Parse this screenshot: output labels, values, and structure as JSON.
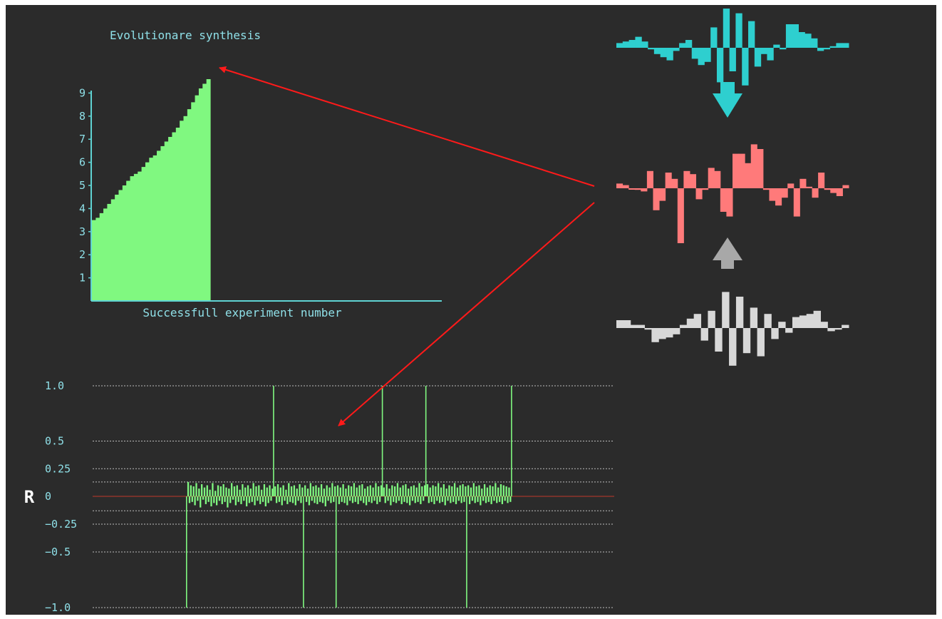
{
  "colors": {
    "background": "#2b2b2b",
    "axis": "#5fd3d3",
    "label": "#8fe0e8",
    "fitness_fill": "#80f880",
    "correlation_line": "#80f880",
    "grid": "#bdbdbd",
    "zero_line": "#c0392b",
    "arrow": "#ff1a1a",
    "parent_signal": "#2ecfcf",
    "child_signal": "#ff7a7a",
    "other_parent_signal": "#d8d8d8"
  },
  "chart_data": [
    {
      "type": "area",
      "title": "Evolutionare synthesis",
      "xlabel": "Successfull experiment number",
      "ylabel": "",
      "ylim": [
        0,
        9.5
      ],
      "yticks": [
        "1",
        "2",
        "3",
        "4",
        "5",
        "6",
        "7",
        "8",
        "9"
      ],
      "values": [
        3.5,
        3.6,
        3.8,
        4.0,
        4.2,
        4.4,
        4.6,
        4.8,
        5.0,
        5.2,
        5.4,
        5.5,
        5.6,
        5.8,
        6.0,
        6.2,
        6.3,
        6.5,
        6.7,
        6.9,
        7.1,
        7.3,
        7.5,
        7.8,
        8.0,
        8.3,
        8.6,
        8.9,
        9.2,
        9.4,
        9.6
      ]
    },
    {
      "type": "bar",
      "title": "",
      "ylabel": "R",
      "ylim": [
        -1.0,
        1.0
      ],
      "yticks": [
        "1.0",
        "0.5",
        "0.25",
        "0",
        "−0.25",
        "−0.5",
        "−1.0"
      ],
      "ytick_values": [
        1.0,
        0.5,
        0.25,
        0,
        -0.25,
        -0.5,
        -1.0
      ],
      "gridlines": [
        1.0,
        0.5,
        0.25,
        0.13,
        0,
        -0.13,
        -0.25,
        -0.5,
        -1.0
      ],
      "values": [
        -1.0,
        0.13,
        -0.06,
        0.1,
        -0.05,
        0.09,
        -0.08,
        0.12,
        -0.04,
        0.07,
        -0.1,
        0.11,
        -0.03,
        0.08,
        -0.07,
        0.1,
        -0.05,
        0.06,
        -0.09,
        0.12,
        -0.06,
        0.05,
        -0.08,
        0.1,
        -0.04,
        0.09,
        -0.07,
        0.11,
        -0.05,
        0.08,
        -0.1,
        0.07,
        -0.06,
        0.12,
        -0.03,
        0.09,
        -0.08,
        0.1,
        -0.05,
        0.06,
        -0.07,
        0.11,
        -0.04,
        0.08,
        -0.09,
        0.1,
        -0.06,
        0.07,
        -0.05,
        0.12,
        -0.08,
        0.09,
        -0.04,
        0.1,
        -0.07,
        0.06,
        -0.05,
        0.11,
        -0.09,
        0.08,
        -0.06,
        0.1,
        -0.04,
        0.07,
        1.0,
        0.09,
        -0.06,
        0.11,
        -0.05,
        0.08,
        -0.08,
        0.1,
        -0.04,
        0.06,
        -0.07,
        0.12,
        -0.05,
        0.09,
        -0.06,
        0.1,
        -0.08,
        0.07,
        -0.04,
        0.11,
        -0.06,
        0.08,
        -1.0,
        0.1,
        -0.05,
        0.07,
        -0.08,
        0.12,
        -0.04,
        0.09,
        -0.06,
        0.1,
        -0.07,
        0.08,
        -0.05,
        0.11,
        -0.06,
        0.07,
        -0.09,
        0.1,
        -0.04,
        0.08,
        -0.06,
        0.12,
        -0.05,
        0.09,
        -1.0,
        0.1,
        -0.07,
        0.08,
        -0.05,
        0.11,
        -0.06,
        0.07,
        -0.08,
        0.1,
        -0.04,
        0.09,
        -0.06,
        0.12,
        -0.05,
        0.08,
        -0.07,
        0.1,
        -0.04,
        0.11,
        -0.06,
        0.07,
        -0.08,
        0.09,
        -0.05,
        0.1,
        -0.06,
        0.08,
        -0.04,
        0.12,
        -0.07,
        0.09,
        -0.05,
        0.1,
        1.0,
        0.08,
        -0.06,
        0.11,
        -0.04,
        0.07,
        -0.08,
        0.1,
        -0.05,
        0.09,
        -0.06,
        0.12,
        -0.04,
        0.08,
        -0.07,
        0.1,
        -0.05,
        0.11,
        -0.06,
        0.07,
        -0.08,
        0.09,
        -0.04,
        0.1,
        -0.06,
        0.08,
        -0.05,
        0.12,
        -0.07,
        0.09,
        -0.04,
        0.1,
        1.0,
        0.11,
        -0.06,
        0.08,
        -0.05,
        0.1,
        -0.07,
        0.09,
        -0.04,
        0.12,
        -0.06,
        0.08,
        -0.05,
        0.11,
        -0.08,
        0.07,
        -0.04,
        0.1,
        -0.06,
        0.09,
        -0.05,
        0.12,
        -0.07,
        0.08,
        -0.04,
        0.1,
        -0.06,
        0.11,
        -0.05,
        0.09,
        -1.0,
        0.1,
        -0.07,
        0.08,
        -0.04,
        0.12,
        -0.06,
        0.09,
        -0.05,
        0.1,
        -0.08,
        0.07,
        -0.04,
        0.11,
        -0.06,
        0.08,
        -0.05,
        0.1,
        -0.07,
        0.09,
        -0.04,
        0.12,
        -0.06,
        0.08,
        -0.05,
        0.11,
        -0.07,
        0.1,
        -0.04,
        0.09,
        -0.06,
        0.08,
        -0.05,
        1.0
      ]
    },
    {
      "type": "bar",
      "title": "",
      "series": [
        {
          "role": "parent",
          "color": "#2ecfcf",
          "values": [
            0.06,
            0.08,
            0.1,
            0.14,
            0.08,
            -0.02,
            -0.08,
            -0.12,
            -0.16,
            -0.04,
            0.06,
            0.1,
            -0.14,
            -0.22,
            -0.18,
            0.26,
            -0.44,
            0.5,
            -0.3,
            0.44,
            -0.48,
            0.34,
            -0.24,
            -0.08,
            -0.16,
            0.04,
            -0.02,
            0.3,
            0.3,
            0.2,
            0.18,
            0.12,
            -0.04,
            -0.02,
            0.02,
            0.06,
            0.06
          ]
        },
        {
          "role": "child",
          "color": "#ff7a7a",
          "values": [
            0.06,
            0.04,
            0.0,
            -0.02,
            -0.04,
            0.22,
            -0.28,
            -0.16,
            0.2,
            0.12,
            -0.7,
            0.22,
            0.18,
            -0.14,
            -0.02,
            0.26,
            0.22,
            -0.3,
            -0.36,
            0.44,
            0.44,
            0.32,
            0.56,
            0.5,
            -0.02,
            -0.16,
            -0.22,
            -0.12,
            0.06,
            -0.36,
            0.12,
            0.02,
            -0.12,
            0.2,
            -0.02,
            -0.06,
            -0.1,
            0.04
          ]
        },
        {
          "role": "other-parent",
          "color": "#d8d8d8",
          "values": [
            0.1,
            0.1,
            0.04,
            0.04,
            -0.02,
            -0.18,
            -0.14,
            -0.12,
            -0.08,
            0.04,
            0.12,
            0.18,
            -0.16,
            0.22,
            -0.3,
            0.46,
            -0.48,
            0.4,
            -0.32,
            0.26,
            -0.36,
            0.18,
            -0.14,
            0.08,
            -0.06,
            0.14,
            0.16,
            0.18,
            0.22,
            0.08,
            -0.04,
            -0.02,
            0.04
          ]
        }
      ]
    }
  ]
}
